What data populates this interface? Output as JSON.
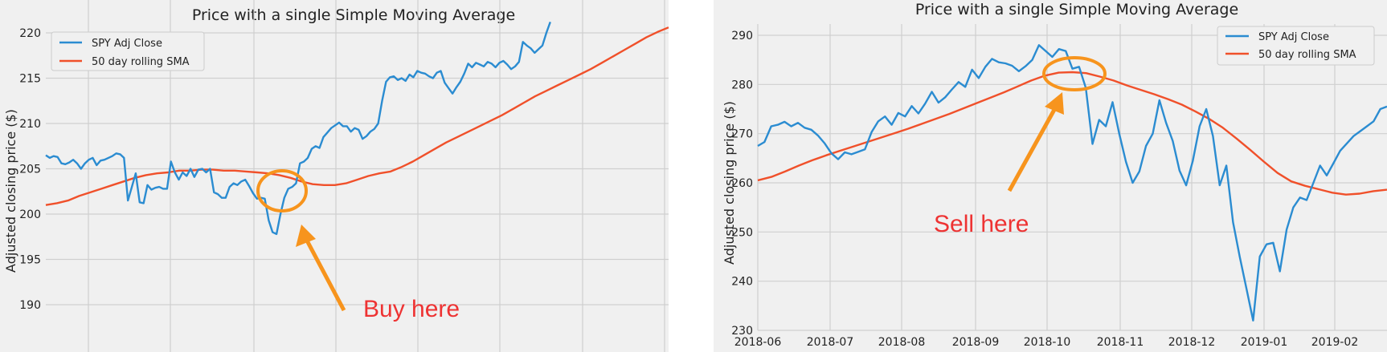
{
  "colors": {
    "panel_bg": "#f0f0f0",
    "grid": "#cfcfcf",
    "price_line": "#2b8cd1",
    "sma_line": "#f0502a",
    "annotation": "#f7941d",
    "annotation_text": "#ee3333"
  },
  "chart_data": [
    {
      "type": "line",
      "title": "Price with a single Simple Moving Average",
      "xlabel": "",
      "ylabel": "Adjusted closing price ($)",
      "ylim": [
        188,
        221
      ],
      "yticks": [
        190,
        195,
        200,
        205,
        210,
        215,
        220
      ],
      "x_tick_labels": [],
      "legend": {
        "placement": "top-left",
        "entries": [
          "SPY Adj Close",
          "50 day rolling SMA"
        ]
      },
      "grid": true,
      "series": [
        {
          "name": "SPY Adj Close",
          "values": [
            206.5,
            206.2,
            206.4,
            206.3,
            205.6,
            205.5,
            205.7,
            206.0,
            205.6,
            205.0,
            205.6,
            206.0,
            206.2,
            205.4,
            205.9,
            206.0,
            206.2,
            206.4,
            206.7,
            206.6,
            206.2,
            201.5,
            203.0,
            204.5,
            201.3,
            201.2,
            203.2,
            202.7,
            202.9,
            203.0,
            202.8,
            202.8,
            205.8,
            204.6,
            203.8,
            204.6,
            204.2,
            205.0,
            204.1,
            204.9,
            205.0,
            204.6,
            205.0,
            202.4,
            202.2,
            201.8,
            201.8,
            203.0,
            203.4,
            203.2,
            203.6,
            203.8,
            203.1,
            202.3,
            201.7,
            201.8,
            201.7,
            199.3,
            198.0,
            197.8,
            200.0,
            201.8,
            202.8,
            203.0,
            203.4,
            205.6,
            205.8,
            206.2,
            207.2,
            207.5,
            207.3,
            208.5,
            209.0,
            209.5,
            209.8,
            210.1,
            209.7,
            209.7,
            209.1,
            209.5,
            209.3,
            208.3,
            208.6,
            209.1,
            209.4,
            210.0,
            212.5,
            214.6,
            215.1,
            215.2,
            214.8,
            215.0,
            214.7,
            215.4,
            215.1,
            215.8,
            215.6,
            215.5,
            215.2,
            215.0,
            215.6,
            215.8,
            214.5,
            213.9,
            213.3,
            214.0,
            214.6,
            215.5,
            216.6,
            216.2,
            216.7,
            216.5,
            216.3,
            216.8,
            216.6,
            216.2,
            216.7,
            216.9,
            216.5,
            216.0,
            216.3,
            216.8,
            219.0,
            218.6,
            218.3,
            217.8,
            218.2,
            218.6,
            220.0,
            221.2
          ],
          "x_range_fraction": [
            0.0,
            0.81
          ]
        },
        {
          "name": "50 day rolling SMA",
          "values": [
            201.0,
            201.2,
            201.5,
            202.0,
            202.4,
            202.8,
            203.2,
            203.6,
            204.0,
            204.3,
            204.5,
            204.6,
            204.8,
            204.8,
            204.9,
            204.9,
            204.8,
            204.8,
            204.7,
            204.6,
            204.5,
            204.3,
            204.0,
            203.6,
            203.3,
            203.2,
            203.2,
            203.4,
            203.8,
            204.2,
            204.5,
            204.7,
            205.2,
            205.8,
            206.5,
            207.2,
            207.9,
            208.5,
            209.1,
            209.7,
            210.3,
            210.9,
            211.6,
            212.3,
            213.0,
            213.6,
            214.2,
            214.8,
            215.4,
            216.0,
            216.7,
            217.4,
            218.1,
            218.8,
            219.5,
            220.1,
            220.6
          ],
          "x_range_fraction": [
            0.0,
            1.0
          ]
        }
      ],
      "annotation": {
        "text": "Buy here",
        "kind": "circle-and-arrow"
      }
    },
    {
      "type": "line",
      "title": "Price with a single Simple Moving Average",
      "xlabel": "",
      "ylabel": "Adjusted closing price ($)",
      "ylim": [
        230,
        293
      ],
      "yticks": [
        230,
        240,
        250,
        260,
        270,
        280,
        290
      ],
      "x_tick_labels": [
        "2018-06",
        "2018-07",
        "2018-08",
        "2018-09",
        "2018-10",
        "2018-11",
        "2018-12",
        "2019-01",
        "2019-02"
      ],
      "legend": {
        "placement": "top-right",
        "entries": [
          "SPY Adj Close",
          "50 day rolling SMA"
        ]
      },
      "grid": true,
      "series": [
        {
          "name": "SPY Adj Close",
          "values": [
            267.5,
            268.3,
            271.5,
            271.8,
            272.4,
            271.5,
            272.2,
            271.2,
            270.8,
            269.6,
            268.0,
            266.0,
            264.8,
            266.2,
            265.8,
            266.3,
            266.8,
            270.3,
            272.5,
            273.5,
            271.8,
            274.2,
            273.5,
            275.6,
            274.1,
            276.1,
            278.5,
            276.3,
            277.4,
            279.0,
            280.5,
            279.5,
            283.0,
            281.3,
            283.6,
            285.2,
            284.5,
            284.3,
            283.8,
            282.7,
            283.7,
            285.0,
            288.0,
            286.8,
            285.6,
            287.2,
            286.8,
            283.2,
            283.6,
            279.3,
            267.9,
            272.8,
            271.5,
            276.4,
            270.0,
            264.3,
            260.0,
            262.3,
            267.5,
            270.0,
            276.8,
            272.2,
            268.5,
            262.5,
            259.5,
            264.5,
            271.5,
            275.0,
            269.5,
            259.5,
            263.5,
            252.0,
            245.0,
            238.5,
            232.0,
            245.0,
            247.5,
            247.8,
            242.0,
            250.5,
            255.0,
            257.0,
            256.5,
            260.0,
            263.5,
            261.5,
            264.0,
            266.5,
            268.0,
            269.5,
            270.5,
            271.5,
            272.5,
            275.0,
            275.5
          ],
          "x_range_fraction": [
            0.0,
            1.0
          ]
        },
        {
          "name": "50 day rolling SMA",
          "values": [
            260.5,
            261.2,
            262.3,
            263.5,
            264.6,
            265.6,
            266.5,
            267.4,
            268.3,
            269.2,
            270.1,
            271.0,
            272.0,
            273.0,
            274.0,
            275.1,
            276.2,
            277.3,
            278.4,
            279.6,
            280.8,
            281.8,
            282.4,
            282.5,
            282.3,
            281.6,
            280.8,
            279.8,
            278.9,
            278.0,
            277.0,
            275.9,
            274.5,
            273.0,
            271.2,
            269.0,
            266.7,
            264.3,
            262.0,
            260.3,
            259.4,
            258.7,
            258.0,
            257.6,
            257.8,
            258.3,
            258.6
          ],
          "x_range_fraction": [
            0.0,
            1.0
          ]
        }
      ],
      "annotation": {
        "text": "Sell here",
        "kind": "circle-and-arrow"
      }
    }
  ]
}
